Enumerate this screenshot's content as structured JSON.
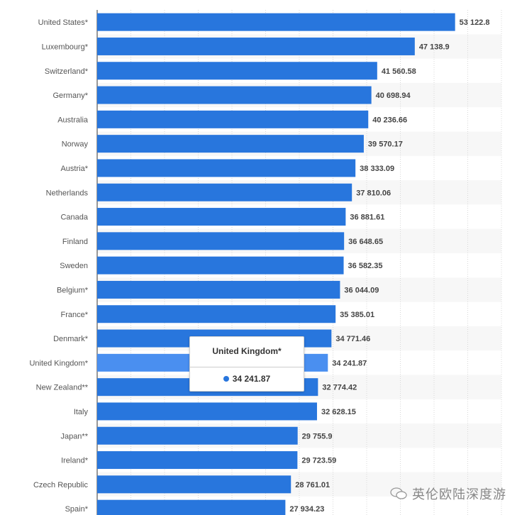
{
  "chart_data": {
    "type": "bar",
    "orientation": "horizontal",
    "categories": [
      "United States*",
      "Luxembourg*",
      "Switzerland*",
      "Germany*",
      "Australia",
      "Norway",
      "Austria*",
      "Netherlands",
      "Canada",
      "Finland",
      "Sweden",
      "Belgium*",
      "France*",
      "Denmark*",
      "United Kingdom*",
      "New Zealand**",
      "Italy",
      "Japan**",
      "Ireland*",
      "Czech Republic",
      "Spain*"
    ],
    "values": [
      53122.8,
      47138.9,
      41560.58,
      40698.94,
      40236.66,
      39570.17,
      38333.09,
      37810.06,
      36881.61,
      36648.65,
      36582.35,
      36044.09,
      35385.01,
      34771.46,
      34241.87,
      32774.42,
      32628.15,
      29755.9,
      29723.59,
      28761.01,
      27934.23
    ],
    "value_labels": [
      "53 122.8",
      "47 138.9",
      "41 560.58",
      "40 698.94",
      "40 236.66",
      "39 570.17",
      "38 333.09",
      "37 810.06",
      "36 881.61",
      "36 648.65",
      "36 582.35",
      "36 044.09",
      "35 385.01",
      "34 771.46",
      "34 241.87",
      "32 774.42",
      "32 628.15",
      "29 755.9",
      "29 723.59",
      "28 761.01",
      "27 934.23"
    ],
    "highlighted": "United Kingdom*",
    "xlim": [
      0,
      60000
    ],
    "grid_step": 5000,
    "grid": true,
    "colors": {
      "bar": "#2876dd",
      "highlight": "#4a8ff0",
      "band": "#f7f7f7",
      "grid": "#d8d8d8"
    }
  },
  "tooltip": {
    "title": "United Kingdom*",
    "value": "34 241.87"
  },
  "watermark": {
    "text": "英伦欧陆深度游",
    "icon": "wechat-icon"
  }
}
